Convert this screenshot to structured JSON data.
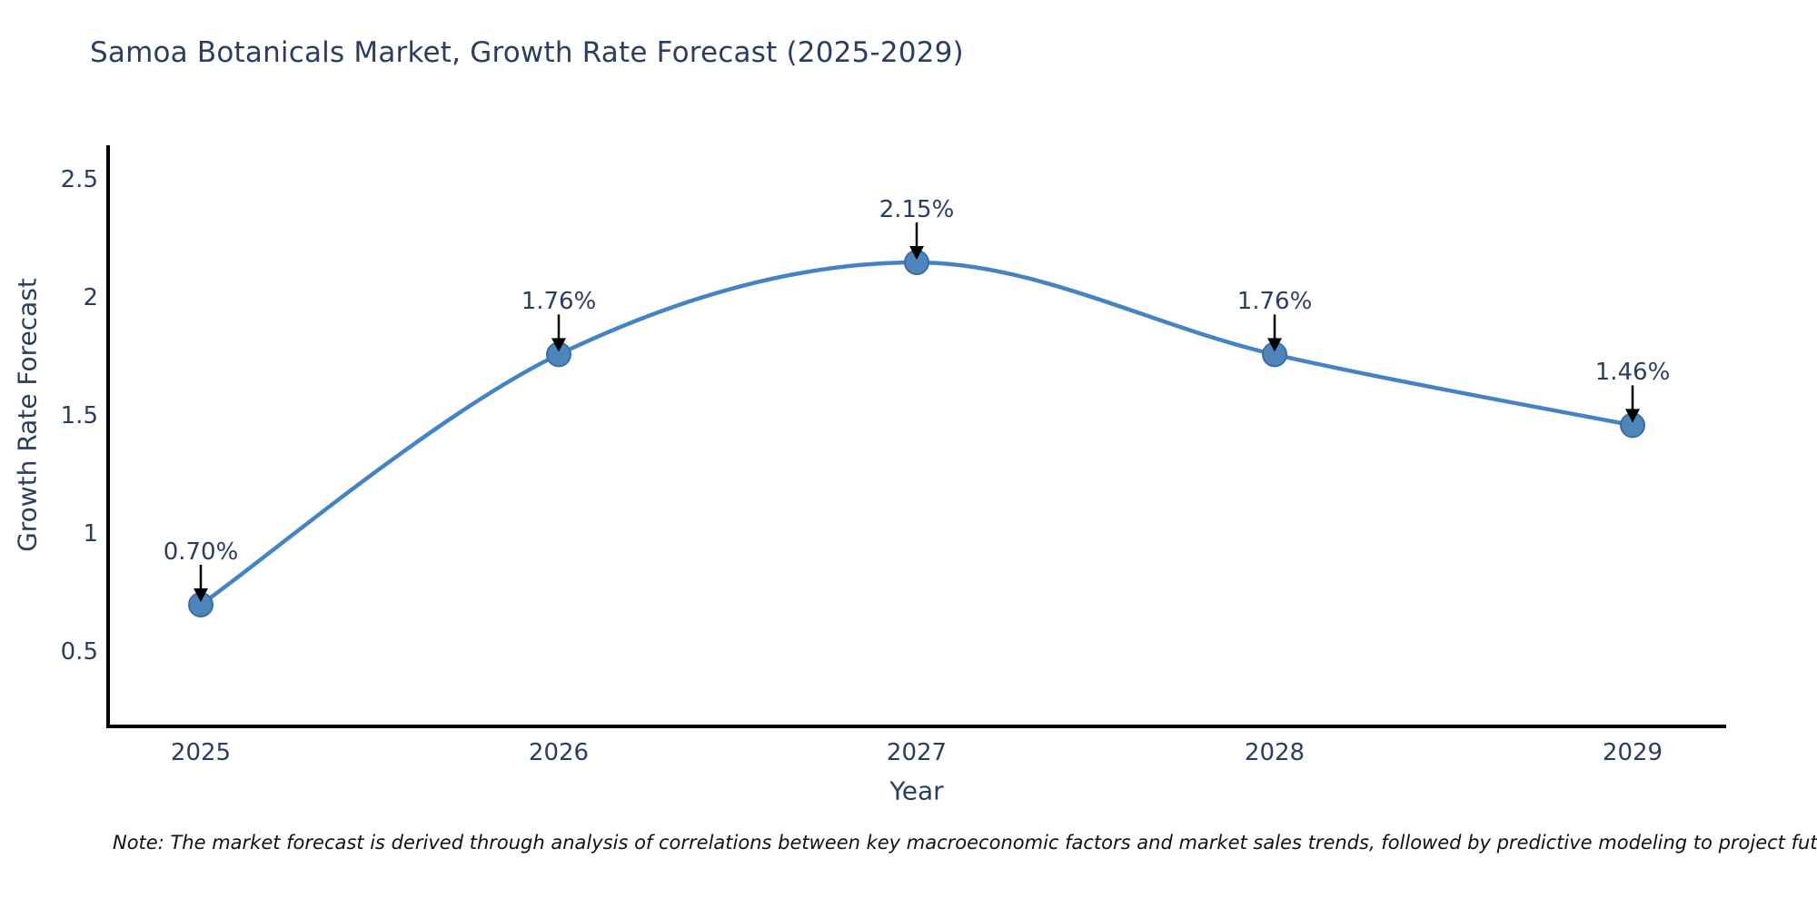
{
  "chart_data": {
    "type": "line",
    "title": "Samoa Botanicals Market, Growth Rate Forecast (2025-2029)",
    "xlabel": "Year",
    "ylabel": "Growth Rate Forecast",
    "categories": [
      "2025",
      "2026",
      "2027",
      "2028",
      "2029"
    ],
    "values": [
      0.7,
      1.76,
      2.15,
      1.76,
      1.46
    ],
    "point_labels": [
      "0.70%",
      "1.76%",
      "2.15%",
      "1.76%",
      "1.46%"
    ],
    "y_ticks": [
      2.5,
      2,
      1.5,
      1,
      0.5
    ],
    "y_tick_labels": [
      "2.5",
      "2",
      "1.5",
      "1",
      "0.5"
    ],
    "ylim": [
      0.19,
      2.65
    ],
    "grid": false,
    "legend": false,
    "line_color": "#4484c4",
    "marker_color": "#4d85bc",
    "marker_edge_color": "#3a6fa5",
    "arrow_color": "#000000",
    "axis_color": "#000000"
  },
  "note": "Note: The market forecast is derived through analysis of correlations between key macroeconomic factors and market sales trends, followed by predictive modeling to project future sales",
  "colors": {
    "title_text": "#2a3f5f",
    "tick_text": "#2a3f5f",
    "background": "#ffffff"
  }
}
